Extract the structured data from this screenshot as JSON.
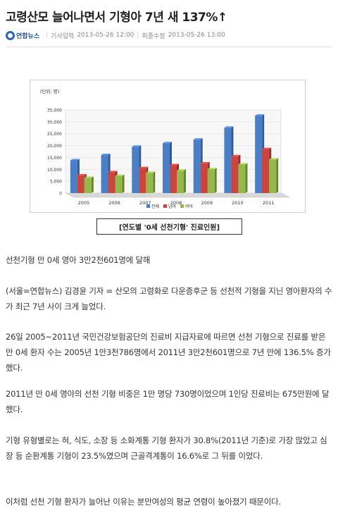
{
  "article": {
    "title": "고령산모 늘어나면서 기형아 7년 새 137%↑",
    "source": "연합뉴스",
    "published_label": "기사입력",
    "published": "2013-05-26 12:00",
    "modified_label": "최종수정",
    "modified": "2013-05-26 13:00",
    "caption": "[연도별 '0세 선천기형' 진료인원]",
    "paragraphs": [
      "선천기형 만 0세 영아 3만2천601명에 달해",
      "(서울=연합뉴스) 김경윤 기자 = 산모의 고령화로 다운증후군 등 선천적 기형을 지닌 영아환자의 수가 최근 7년 사이 크게 늘었다.",
      "26일 2005~2011년 국민건강보험공단의 진료비 지급자료에 따르면 선천 기형으로 진료를 받은 만 0세 환자 수는 2005년 1만3천786명에서 2011년 3만2천601명으로 7년 만에 136.5% 증가했다.",
      "2011년 만 0세 영아의 선천 기형 비중은 1만 명당 730명이었으며 1인당 진료비는 675만원에 달했다.",
      "기형 유형별로는 혀, 식도, 소장 등 소화계통 기형 환자가 30.8%(2011년 기준)로 가장 많았고 심장 등 순환계통 기형이 23.5%였으며 근골격계통이 16.6%로 그 뒤를 이었다.",
      "이처럼 선천 기형 환자가 늘어난 이유는 분만여성의 평균 연령이 높아졌기 때문이다."
    ]
  },
  "chart_data": {
    "type": "bar",
    "unit_label": "(단위: 명)",
    "categories": [
      "2005",
      "2006",
      "2007",
      "2008",
      "2009",
      "2010",
      "2011"
    ],
    "ylim": [
      0,
      35000
    ],
    "yticks": [
      "0",
      "5,000",
      "10,000",
      "15,000",
      "20,000",
      "25,000",
      "30,000",
      "35,000"
    ],
    "series": [
      {
        "name": "전체",
        "color": "#4a7fc8",
        "values": [
          13786,
          16000,
          19500,
          21000,
          22500,
          27500,
          32601
        ]
      },
      {
        "name": "남아",
        "color": "#c9463f",
        "values": [
          7400,
          8800,
          10500,
          11700,
          12500,
          15500,
          18500
        ]
      },
      {
        "name": "여아",
        "color": "#94b84a",
        "values": [
          6400,
          7200,
          8500,
          9400,
          10000,
          12000,
          14100
        ]
      }
    ]
  }
}
